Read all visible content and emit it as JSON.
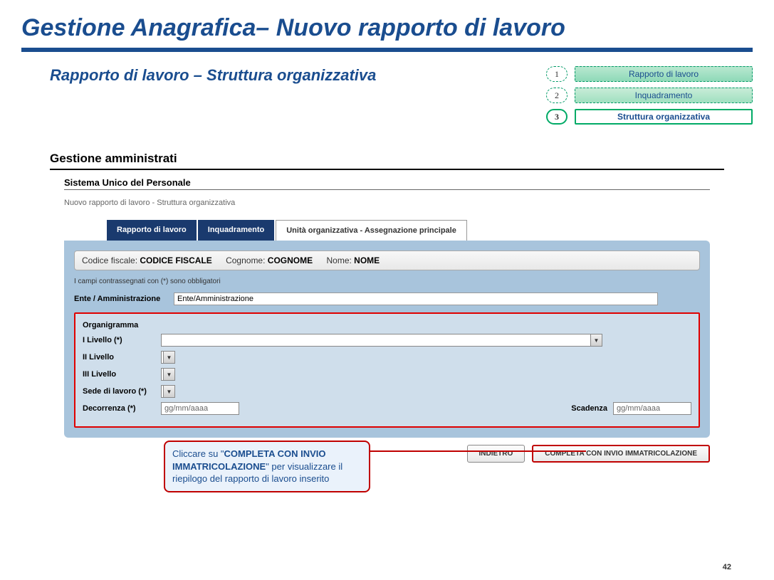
{
  "page": {
    "main_title": "Gestione Anagrafica– Nuovo rapporto di lavoro",
    "sub_title": "Rapporto di lavoro – Struttura organizzativa",
    "page_number": "42"
  },
  "steps": [
    {
      "num": "1",
      "label": "Rapporto di lavoro"
    },
    {
      "num": "2",
      "label": "Inquadramento"
    },
    {
      "num": "3",
      "label": "Struttura organizzativa"
    }
  ],
  "section": {
    "title": "Gestione amministrati",
    "system": "Sistema Unico del Personale",
    "breadcrumb": "Nuovo rapporto di lavoro - Struttura organizzativa"
  },
  "tabs": [
    {
      "label": "Rapporto di lavoro",
      "active": false
    },
    {
      "label": "Inquadramento",
      "active": false
    },
    {
      "label": "Unità organizzativa - Assegnazione principale",
      "active": true
    }
  ],
  "info": {
    "cf_label": "Codice fiscale:",
    "cf_value": "CODICE FISCALE",
    "cognome_label": "Cognome:",
    "cognome_value": "COGNOME",
    "nome_label": "Nome:",
    "nome_value": "NOME"
  },
  "required_note": "I campi contrassegnati con (*) sono obbligatori",
  "ente": {
    "label": "Ente / Amministrazione",
    "value": "Ente/Amministrazione"
  },
  "org": {
    "title": "Organigramma",
    "l1": "I Livello (*)",
    "l2": "II Livello",
    "l3": "III Livello",
    "sede": "Sede di lavoro (*)",
    "decorrenza": "Decorrenza (*)",
    "decorrenza_ph": "gg/mm/aaaa",
    "scadenza": "Scadenza",
    "scadenza_ph": "gg/mm/aaaa"
  },
  "buttons": {
    "back": "INDIETRO",
    "complete": "COMPLETA CON INVIO IMMATRICOLAZIONE"
  },
  "callout": {
    "pre": "Cliccare su \"",
    "bold": "COMPLETA CON INVIO IMMATRICOLAZIONE",
    "post": "\" per visualizzare il riepilogo del rapporto di lavoro inserito"
  },
  "colors": {
    "primary": "#1a4d8f",
    "panel": "#a8c4dc",
    "highlight": "#e00000",
    "step_green": "#00aa66"
  }
}
